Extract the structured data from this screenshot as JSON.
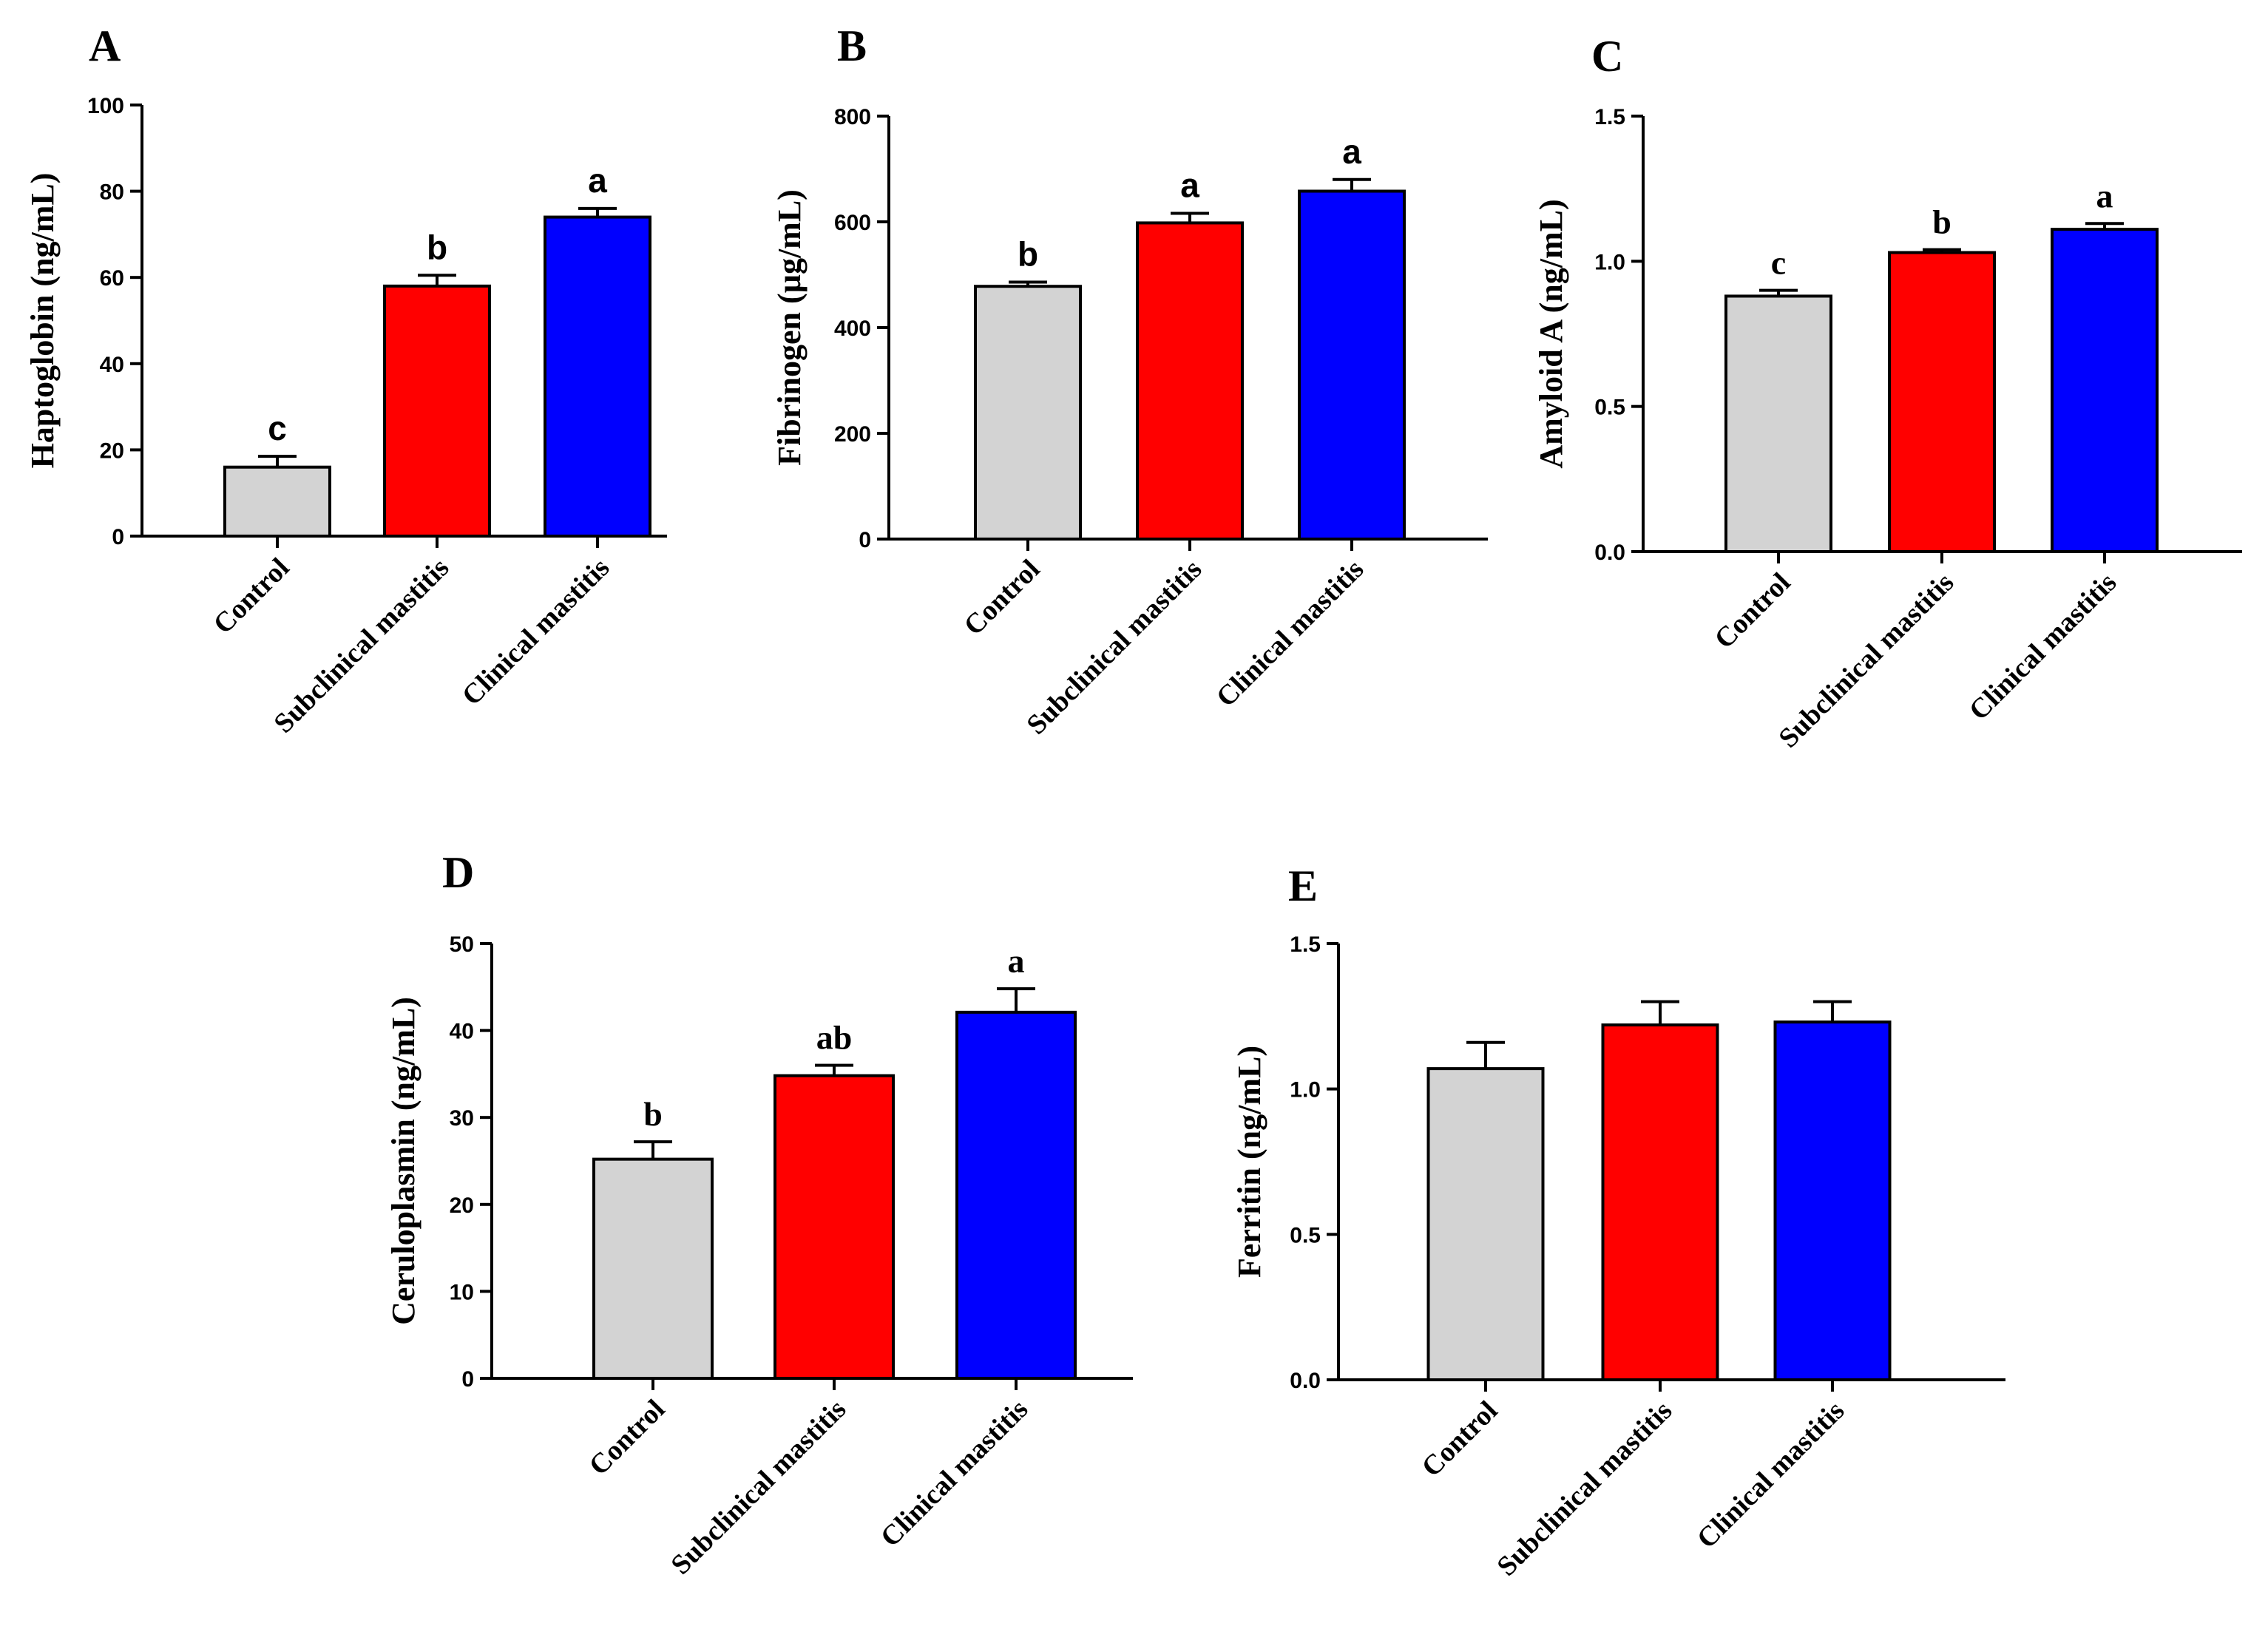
{
  "chart_data": [
    {
      "type": "bar",
      "panel": "A",
      "ylabel": "Haptoglobin (ng/mL)",
      "ylim": [
        0,
        100
      ],
      "yticks": [
        "0",
        "20",
        "40",
        "60",
        "80",
        "100"
      ],
      "categories": [
        "Control",
        "Subclinical mastitis",
        "Clinical mastitis"
      ],
      "values": [
        16,
        58,
        74
      ],
      "errors": [
        2.5,
        2.5,
        2.0
      ],
      "letters": [
        "c",
        "b",
        "a"
      ],
      "colors": [
        "#d3d3d3",
        "#ff0000",
        "#0000ff"
      ]
    },
    {
      "type": "bar",
      "panel": "B",
      "ylabel": "Fibrinogen (µg/mL)",
      "ylim": [
        0,
        800
      ],
      "yticks": [
        "0",
        "200",
        "400",
        "600",
        "800"
      ],
      "categories": [
        "Control",
        "Subclinical mastitis",
        "Clinical mastitis"
      ],
      "values": [
        478,
        598,
        658
      ],
      "errors": [
        8,
        18,
        22
      ],
      "letters": [
        "b",
        "a",
        "a"
      ],
      "colors": [
        "#d3d3d3",
        "#ff0000",
        "#0000ff"
      ]
    },
    {
      "type": "bar",
      "panel": "C",
      "ylabel": "Amyloid A (ng/mL)",
      "ylim": [
        0,
        1.5
      ],
      "yticks": [
        "0.0",
        "0.5",
        "1.0",
        "1.5"
      ],
      "categories": [
        "Control",
        "Subclinical mastitis",
        "Clinical mastitis"
      ],
      "values": [
        0.88,
        1.03,
        1.11
      ],
      "errors": [
        0.02,
        0.01,
        0.02
      ],
      "letters": [
        "c",
        "b",
        "a"
      ],
      "colors": [
        "#d3d3d3",
        "#ff0000",
        "#0000ff"
      ]
    },
    {
      "type": "bar",
      "panel": "D",
      "ylabel": "Ceruloplasmin (ng/mL)",
      "ylim": [
        0,
        50
      ],
      "yticks": [
        "0",
        "10",
        "20",
        "30",
        "40",
        "50"
      ],
      "categories": [
        "Control",
        "Subclinical mastitis",
        "Clinical mastitis"
      ],
      "values": [
        25.2,
        34.8,
        42.1
      ],
      "errors": [
        2.0,
        1.2,
        2.7
      ],
      "letters": [
        "b",
        "ab",
        "a"
      ],
      "colors": [
        "#d3d3d3",
        "#ff0000",
        "#0000ff"
      ]
    },
    {
      "type": "bar",
      "panel": "E",
      "ylabel": "Ferritin (ng/mL)",
      "ylim": [
        0,
        1.5
      ],
      "yticks": [
        "0.0",
        "0.5",
        "1.0",
        "1.5"
      ],
      "categories": [
        "Control",
        "Subclinical mastitis",
        "Clinical mastitis"
      ],
      "values": [
        1.07,
        1.22,
        1.23
      ],
      "errors": [
        0.09,
        0.08,
        0.07
      ],
      "letters": [
        "",
        "",
        ""
      ],
      "colors": [
        "#d3d3d3",
        "#ff0000",
        "#0000ff"
      ]
    }
  ]
}
